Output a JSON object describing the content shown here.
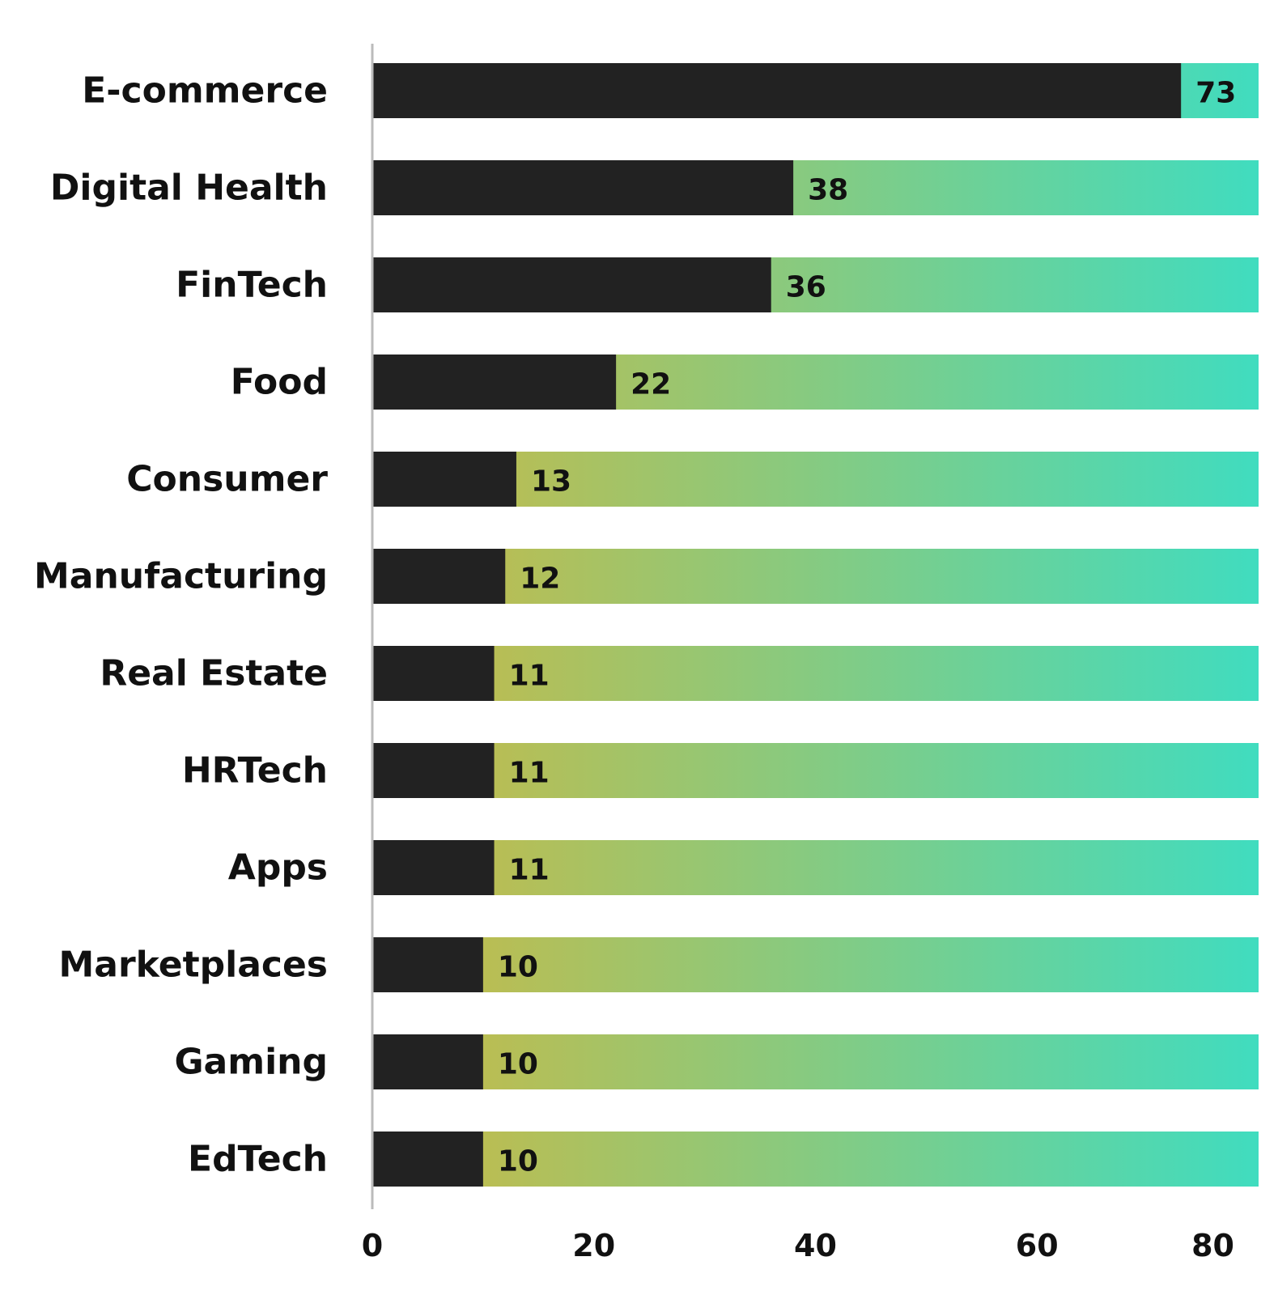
{
  "chart_data": {
    "type": "bar",
    "orientation": "horizontal",
    "categories": [
      "E-commerce",
      "Digital Health",
      "FinTech",
      "Food",
      "Consumer",
      "Manufacturing",
      "Real Estate",
      "HRTech",
      "Apps",
      "Marketplaces",
      "Gaming",
      "EdTech"
    ],
    "values": [
      73,
      38,
      36,
      22,
      13,
      12,
      11,
      11,
      11,
      10,
      10,
      10
    ],
    "data_labels": [
      "73",
      "38",
      "36",
      "22",
      "13",
      "12",
      "11",
      "11",
      "11",
      "10",
      "10",
      "10"
    ],
    "xlim": [
      0,
      80
    ],
    "x_ticks": [
      "0",
      "20",
      "40",
      "60",
      "80"
    ],
    "x_tick_values": [
      0,
      20,
      40,
      60,
      80
    ],
    "grid": false,
    "legend": "none",
    "colors": {
      "bar": "#222222",
      "background_fill_start": "#cbb944",
      "background_fill_end": "#40dcbf",
      "axis": "#bbbbbb",
      "text": "#111111"
    }
  }
}
